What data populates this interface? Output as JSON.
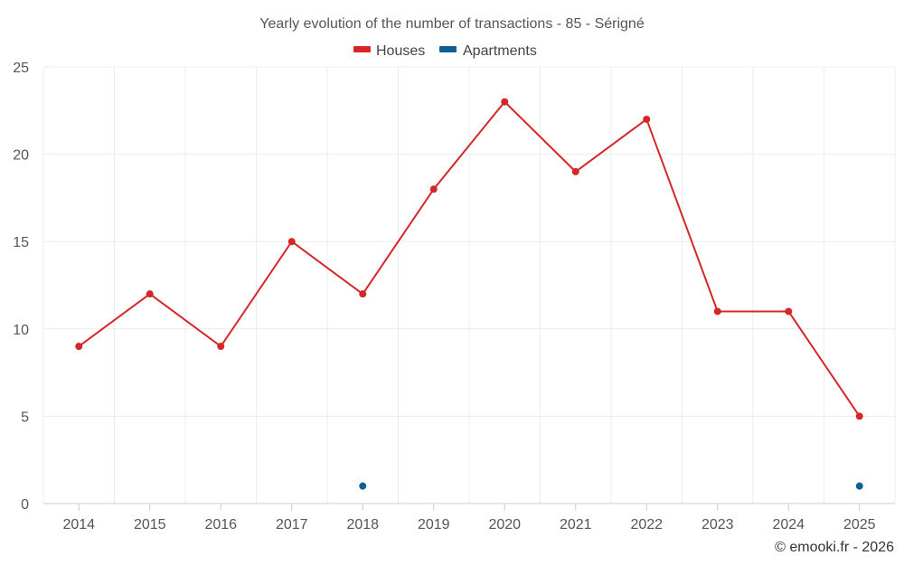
{
  "chart_data": {
    "type": "line",
    "title": "Yearly evolution of the number of transactions - 85 - Sérigné",
    "categories": [
      "2014",
      "2015",
      "2016",
      "2017",
      "2018",
      "2019",
      "2020",
      "2021",
      "2022",
      "2023",
      "2024",
      "2025"
    ],
    "series": [
      {
        "name": "Houses",
        "color": "#d62728",
        "values": [
          9,
          12,
          9,
          15,
          12,
          18,
          23,
          19,
          22,
          11,
          11,
          5
        ]
      },
      {
        "name": "Apartments",
        "color": "#0e5f96",
        "values": [
          null,
          null,
          null,
          null,
          1,
          null,
          null,
          null,
          null,
          null,
          null,
          1
        ]
      }
    ],
    "yticks": [
      0,
      5,
      10,
      15,
      20,
      25
    ],
    "ylim": [
      0,
      25
    ],
    "xlabel": "",
    "ylabel": "",
    "legend_position": "top-center",
    "grid": true
  },
  "credit": "© emooki.fr - 2026"
}
